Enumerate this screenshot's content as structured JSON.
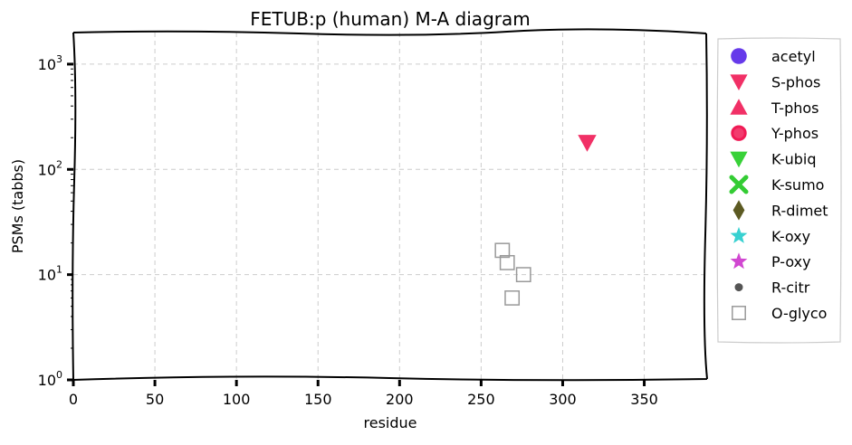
{
  "chart_data": {
    "type": "scatter",
    "title": "FETUB:p (human) M-A diagram",
    "xlabel": "residue",
    "ylabel": "PSMs (tabbs)",
    "xlim": [
      0,
      388
    ],
    "ylim_log10": [
      0,
      3.3
    ],
    "yscale": "log",
    "grid": true,
    "legend_position": "outside-right",
    "x_ticks": [
      0,
      50,
      100,
      150,
      200,
      250,
      300,
      350
    ],
    "x_tick_labels": [
      "0",
      "50",
      "100",
      "150",
      "200",
      "250",
      "300",
      "350"
    ],
    "y_ticks": [
      1,
      10,
      100,
      1000
    ],
    "y_tick_labels": [
      {
        "base": "10",
        "exp": "0"
      },
      {
        "base": "10",
        "exp": "1"
      },
      {
        "base": "10",
        "exp": "2"
      },
      {
        "base": "10",
        "exp": "3"
      }
    ],
    "series": [
      {
        "name": "acetyl",
        "marker": "circle",
        "color": "#4b17e6",
        "points": []
      },
      {
        "name": "S-phos",
        "marker": "triangle-down",
        "color": "#f01a55",
        "points": [
          {
            "x": 315,
            "y": 180
          }
        ]
      },
      {
        "name": "T-phos",
        "marker": "triangle-up",
        "color": "#f01a55",
        "points": []
      },
      {
        "name": "Y-phos",
        "marker": "circle-ring",
        "color": "#f01a55",
        "points": []
      },
      {
        "name": "K-ubiq",
        "marker": "triangle-down",
        "color": "#22cc22",
        "points": []
      },
      {
        "name": "K-sumo",
        "marker": "x-thick",
        "color": "#33cc33",
        "points": []
      },
      {
        "name": "R-dimet",
        "marker": "diamond",
        "color": "#5c5a22",
        "points": []
      },
      {
        "name": "K-oxy",
        "marker": "star",
        "color": "#22cccc",
        "points": []
      },
      {
        "name": "P-oxy",
        "marker": "star",
        "color": "#cc33cc",
        "points": []
      },
      {
        "name": "R-citr",
        "marker": "small-circle",
        "color": "#555555",
        "points": []
      },
      {
        "name": "O-glyco",
        "marker": "square-open",
        "color": "#999999",
        "points": [
          {
            "x": 263,
            "y": 17
          },
          {
            "x": 266,
            "y": 13
          },
          {
            "x": 276,
            "y": 10
          },
          {
            "x": 269,
            "y": 6
          }
        ]
      }
    ]
  }
}
